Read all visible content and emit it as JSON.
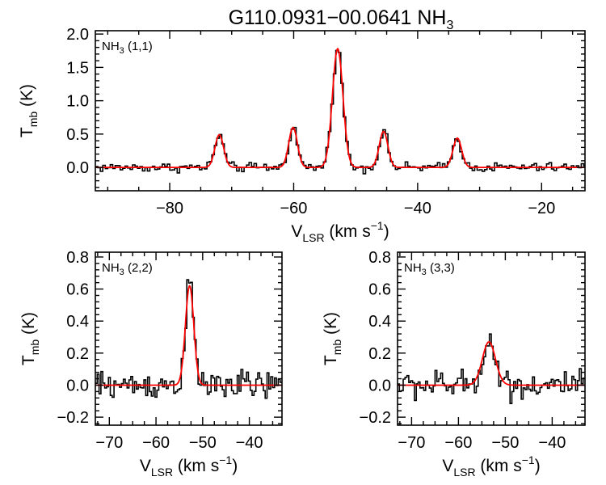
{
  "figure_title": {
    "main": "G110.0931−00.0641 NH",
    "sub": "3"
  },
  "colors": {
    "observed": "#000000",
    "fit": "#ff0000",
    "axes": "#000000"
  },
  "chart_data": [
    {
      "type": "line",
      "panel_label": {
        "main": "NH",
        "sub": "3",
        "tail": " (1,1)"
      },
      "xlabel": {
        "main": "V",
        "sub": "LSR",
        "tail": " (km s",
        "sup": "−1",
        "end": ")"
      },
      "ylabel": {
        "main": "T",
        "sub": "mb",
        "tail": " (K)"
      },
      "xlim": [
        -92,
        -13
      ],
      "ylim": [
        -0.35,
        2.05
      ],
      "xticks": [
        -80,
        -60,
        -40,
        -20
      ],
      "xtick_labels": [
        "−80",
        "−60",
        "−40",
        "−20"
      ],
      "yticks": [
        0.0,
        0.5,
        1.0,
        1.5,
        2.0
      ],
      "ytick_labels": [
        "0.0",
        "0.5",
        "1.0",
        "1.5",
        "2.0"
      ],
      "components": [
        {
          "center": -72.0,
          "amplitude": 0.49,
          "sigma": 0.7
        },
        {
          "center": -60.1,
          "amplitude": 0.6,
          "sigma": 0.7
        },
        {
          "center": -52.9,
          "amplitude": 1.78,
          "sigma": 0.85
        },
        {
          "center": -45.5,
          "amplitude": 0.54,
          "sigma": 0.7
        },
        {
          "center": -33.6,
          "amplitude": 0.44,
          "sigma": 0.7
        }
      ],
      "noise": 0.035,
      "channel_width": 0.4
    },
    {
      "type": "line",
      "panel_label": {
        "main": "NH",
        "sub": "3",
        "tail": " (2,2)"
      },
      "xlabel": {
        "main": "V",
        "sub": "LSR",
        "tail": " (km s",
        "sup": "−1",
        "end": ")"
      },
      "ylabel": {
        "main": "T",
        "sub": "mb",
        "tail": " (K)"
      },
      "xlim": [
        -73,
        -33
      ],
      "ylim": [
        -0.25,
        0.83
      ],
      "xticks": [
        -70,
        -60,
        -50,
        -40
      ],
      "xtick_labels": [
        "−70",
        "−60",
        "−50",
        "−40"
      ],
      "yticks": [
        -0.2,
        0.0,
        0.2,
        0.4,
        0.6,
        0.8
      ],
      "ytick_labels": [
        "−0.2",
        "0.0",
        "0.2",
        "0.4",
        "0.6",
        "0.8"
      ],
      "components": [
        {
          "center": -52.8,
          "amplitude": 0.62,
          "sigma": 0.9
        }
      ],
      "noise": 0.045,
      "channel_width": 0.4
    },
    {
      "type": "line",
      "panel_label": {
        "main": "NH",
        "sub": "3",
        "tail": " (3,3)"
      },
      "xlabel": {
        "main": "V",
        "sub": "LSR",
        "tail": " (km s",
        "sup": "−1",
        "end": ")"
      },
      "ylabel": {
        "main": "T",
        "sub": "mb",
        "tail": " (K)"
      },
      "xlim": [
        -73,
        -33
      ],
      "ylim": [
        -0.25,
        0.83
      ],
      "xticks": [
        -70,
        -60,
        -50,
        -40
      ],
      "xtick_labels": [
        "−70",
        "−60",
        "−50",
        "−40"
      ],
      "yticks": [
        -0.2,
        0.0,
        0.2,
        0.4,
        0.6,
        0.8
      ],
      "ytick_labels": [
        "−0.2",
        "0.0",
        "0.2",
        "0.4",
        "0.6",
        "0.8"
      ],
      "components": [
        {
          "center": -53.5,
          "amplitude": 0.27,
          "sigma": 1.4
        }
      ],
      "noise": 0.045,
      "channel_width": 0.4
    }
  ]
}
